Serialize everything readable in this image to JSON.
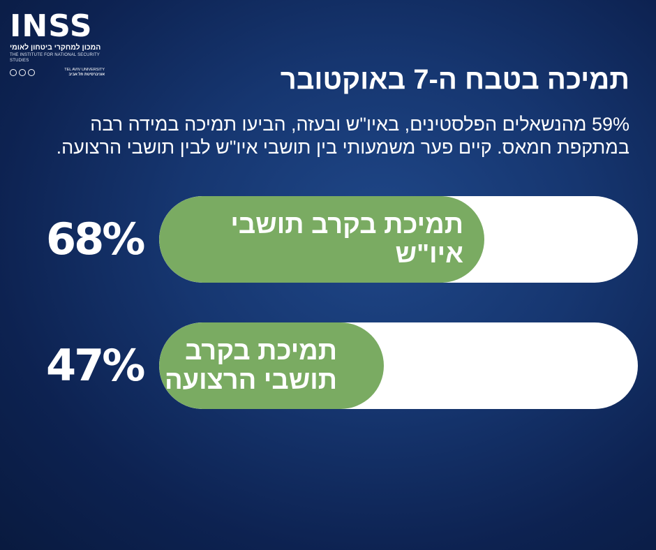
{
  "logo": {
    "wordmark": "INSS",
    "name_he": "המכון למחקרי ביטחון לאומי",
    "name_en": "THE INSTITUTE FOR NATIONAL SECURITY STUDIES",
    "university_en": "TEL AVIV UNIVERSITY",
    "university_he": "אוניברסיטת תל אביב"
  },
  "title": "תמיכה בטבח ה-7 באוקטובר",
  "subtitle": "59% מהנשאלים הפלסטינים, באיו\"ש ובעזה, הביעו תמיכה במידה רבה במתקפת חמאס. קיים פער משמעותי בין תושבי איו\"ש לבין תושבי הרצועה.",
  "chart_data": {
    "type": "bar",
    "orientation": "horizontal",
    "categories": [
      "תמיכת בקרב תושבי איו\"ש",
      "תמיכת בקרב\nתושבי הרצועה"
    ],
    "values": [
      68,
      47
    ],
    "value_labels": [
      "68%",
      "47%"
    ],
    "unit": "%",
    "xlim": [
      0,
      100
    ],
    "colors": {
      "fill": "#7aab62",
      "track": "#ffffff",
      "background": "#102a5e"
    }
  }
}
